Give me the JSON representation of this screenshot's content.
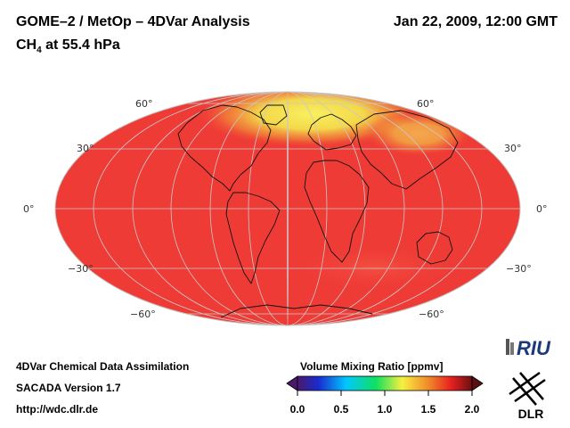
{
  "header": {
    "title": "GOME–2 / MetOp – 4DVar Analysis",
    "subtitle_main": "CH",
    "subtitle_sub": "4",
    "subtitle_rest": " at 55.4 hPa",
    "timestamp": "Jan 22, 2009, 12:00 GMT"
  },
  "map": {
    "projection": "Mollweide",
    "field_color": "#ef3b36",
    "high_color": "#f6e84a",
    "lat_labels": {
      "n60_left": "60°",
      "n30_left": "30°",
      "eq_left": "0°",
      "s30_left": "−30°",
      "s60_left": "−60°",
      "n60_right": "60°",
      "n30_right": "30°",
      "eq_right": "0°",
      "s30_right": "−30°",
      "s60_right": "−60°"
    }
  },
  "footer": {
    "line1": "4DVar Chemical Data Assimilation",
    "line2": "SACADA Version 1.7",
    "line3": "http://wdc.dlr.de"
  },
  "colorbar": {
    "title": "Volume Mixing Ratio [ppmv]",
    "ticks": [
      "0.0",
      "0.5",
      "1.0",
      "1.5",
      "2.0"
    ]
  },
  "logos": {
    "riu": "RIU",
    "dlr": "DLR"
  }
}
